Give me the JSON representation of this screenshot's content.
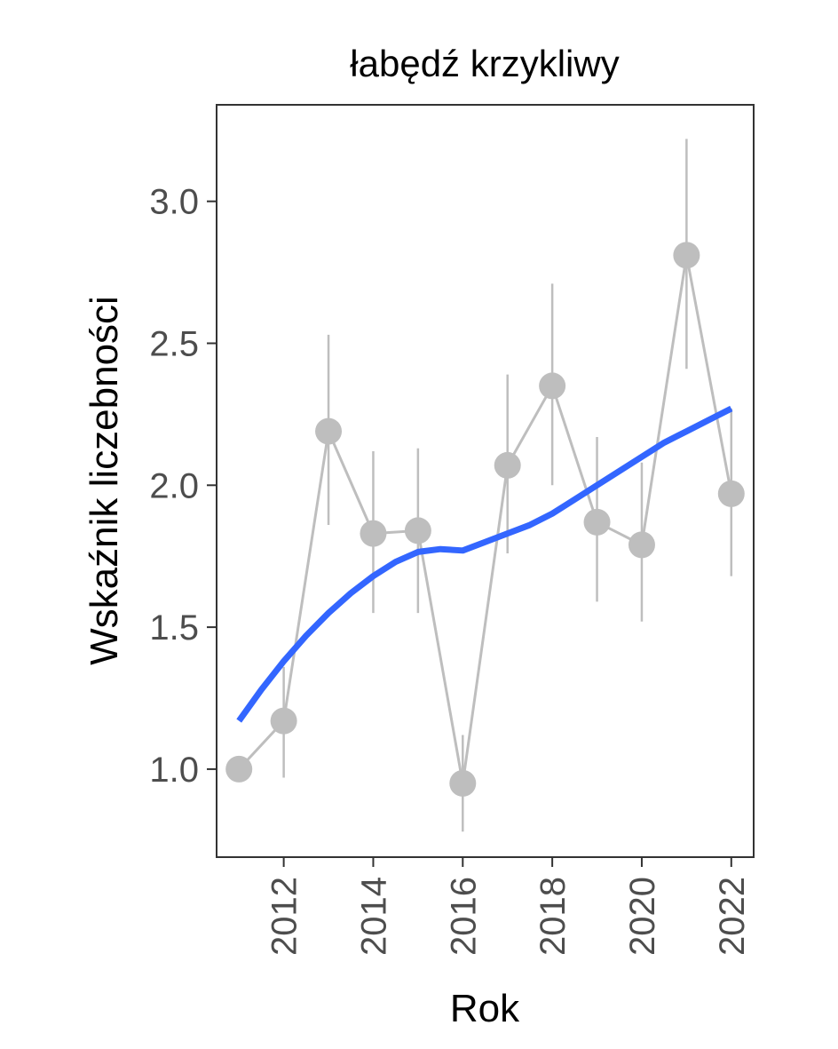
{
  "chart_data": {
    "type": "line",
    "title": "łabędź krzykliwy",
    "xlabel": "Rok",
    "ylabel": "Wskaźnik liczebności",
    "xlim": [
      2010.5,
      2022.5
    ],
    "ylim": [
      0.69,
      3.34
    ],
    "x_ticks": [
      2012,
      2014,
      2016,
      2018,
      2020,
      2022
    ],
    "x_tick_labels": [
      "2012",
      "2014",
      "2016",
      "2018",
      "2020",
      "2022"
    ],
    "y_ticks": [
      1.0,
      1.5,
      2.0,
      2.5,
      3.0
    ],
    "y_tick_labels": [
      "1.0",
      "1.5",
      "2.0",
      "2.5",
      "3.0"
    ],
    "grid": false,
    "series": [
      {
        "kind": "points_with_errorbars",
        "color": "#bebebe",
        "x": [
          2011,
          2012,
          2013,
          2014,
          2015,
          2016,
          2017,
          2018,
          2019,
          2020,
          2021,
          2022
        ],
        "y": [
          1.0,
          1.17,
          2.19,
          1.83,
          1.84,
          0.95,
          2.07,
          2.35,
          1.87,
          1.79,
          2.81,
          1.97
        ],
        "lower": [
          null,
          0.97,
          1.86,
          1.55,
          1.55,
          0.78,
          1.76,
          2.0,
          1.59,
          1.52,
          2.41,
          1.68
        ],
        "upper": [
          null,
          1.36,
          2.53,
          2.12,
          2.13,
          1.12,
          2.39,
          2.71,
          2.17,
          2.08,
          3.22,
          2.27
        ]
      },
      {
        "kind": "smooth_trend",
        "color": "#3366ff",
        "x": [
          2011,
          2011.5,
          2012,
          2012.5,
          2013,
          2013.5,
          2014,
          2014.5,
          2015,
          2015.5,
          2016,
          2016.5,
          2017,
          2017.5,
          2018,
          2018.5,
          2019,
          2019.5,
          2020,
          2020.5,
          2021,
          2021.5,
          2022
        ],
        "y": [
          1.17,
          1.28,
          1.38,
          1.47,
          1.55,
          1.62,
          1.68,
          1.73,
          1.765,
          1.775,
          1.77,
          1.8,
          1.83,
          1.86,
          1.9,
          1.95,
          2.0,
          2.05,
          2.1,
          2.15,
          2.19,
          2.23,
          2.27
        ]
      }
    ]
  }
}
